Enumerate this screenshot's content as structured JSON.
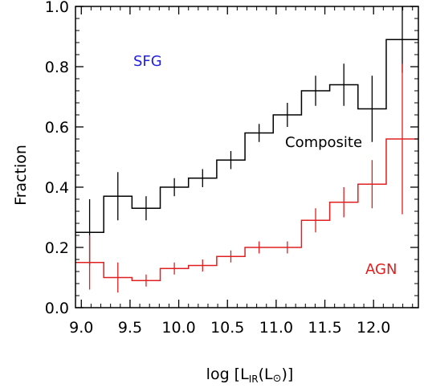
{
  "chart_data": {
    "type": "line",
    "xlabel": "log [L",
    "xlabel_sub": "IR",
    "xlabel_tail": "(L",
    "xlabel_sun": "⊙",
    "xlabel_end": ")]",
    "ylabel": "Fraction",
    "xlim": [
      8.94,
      12.46
    ],
    "ylim": [
      0.0,
      1.0
    ],
    "xticks": [
      9.0,
      9.5,
      10.0,
      10.5,
      11.0,
      11.5,
      12.0
    ],
    "xtick_labels": [
      "9.0",
      "9.5",
      "10.0",
      "10.5",
      "11.0",
      "11.5",
      "12.0"
    ],
    "yticks": [
      0.0,
      0.2,
      0.4,
      0.6,
      0.8,
      1.0
    ],
    "ytick_labels": [
      "0.0",
      "0.2",
      "0.4",
      "0.6",
      "0.8",
      "1.0"
    ],
    "annotations": [
      {
        "text": "SFG",
        "color": "#2020e0"
      },
      {
        "text": "Composite",
        "color": "#000000"
      },
      {
        "text": "AGN",
        "color": "#e02020"
      }
    ],
    "series": [
      {
        "color": "#000000",
        "bin_edges": [
          8.94,
          9.23,
          9.52,
          9.81,
          10.1,
          10.39,
          10.68,
          10.97,
          11.26,
          11.55,
          11.84,
          12.13,
          12.46
        ],
        "values": [
          0.25,
          0.37,
          0.33,
          0.4,
          0.43,
          0.49,
          0.58,
          0.64,
          0.72,
          0.74,
          0.66,
          0.89
        ],
        "err_low": [
          0.11,
          0.08,
          0.04,
          0.03,
          0.03,
          0.03,
          0.03,
          0.04,
          0.05,
          0.07,
          0.11,
          0.11
        ],
        "err_high": [
          0.11,
          0.08,
          0.04,
          0.03,
          0.03,
          0.03,
          0.03,
          0.04,
          0.05,
          0.07,
          0.11,
          0.11
        ]
      },
      {
        "color": "#e02020",
        "bin_edges": [
          8.94,
          9.23,
          9.52,
          9.81,
          10.1,
          10.39,
          10.68,
          10.97,
          11.26,
          11.55,
          11.84,
          12.13,
          12.46
        ],
        "values": [
          0.15,
          0.1,
          0.09,
          0.13,
          0.14,
          0.17,
          0.2,
          0.2,
          0.29,
          0.35,
          0.41,
          0.56
        ],
        "err_low": [
          0.09,
          0.05,
          0.02,
          0.02,
          0.02,
          0.02,
          0.02,
          0.02,
          0.04,
          0.05,
          0.08,
          0.25
        ],
        "err_high": [
          0.09,
          0.05,
          0.02,
          0.02,
          0.02,
          0.02,
          0.02,
          0.02,
          0.04,
          0.05,
          0.08,
          0.25
        ]
      }
    ]
  }
}
